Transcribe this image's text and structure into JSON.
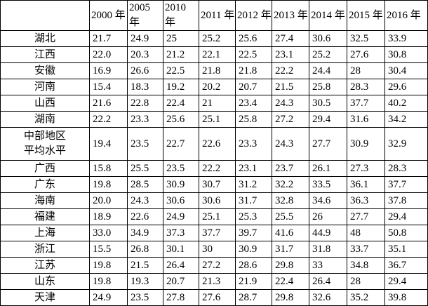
{
  "table": {
    "header": [
      "",
      "2000 年",
      "2005 年",
      "2010 年",
      "2011 年",
      "2012 年",
      "2013 年",
      "2014 年",
      "2015 年",
      "2016 年"
    ],
    "rows": [
      [
        "湖北",
        "21.7",
        "24.9",
        "25",
        "25.2",
        "25.6",
        "27.4",
        "30.6",
        "32.5",
        "33.9"
      ],
      [
        "江西",
        "22.0",
        "20.3",
        "21.2",
        "22.1",
        "22.5",
        "23.1",
        "25.2",
        "27.6",
        "30.8"
      ],
      [
        "安徽",
        "16.9",
        "26.6",
        "22.5",
        "21.8",
        "21.8",
        "22.2",
        "24.4",
        "28",
        "30.4"
      ],
      [
        "河南",
        "15.4",
        "18.3",
        "19.2",
        "20.2",
        "20.7",
        "21.5",
        "25.8",
        "28.3",
        "29.6"
      ],
      [
        "山西",
        "21.6",
        "22.8",
        "22.4",
        "21",
        "23.4",
        "24.3",
        "30.5",
        "37.7",
        "40.2"
      ],
      [
        "湖南",
        "22.2",
        "23.3",
        "25.6",
        "25.1",
        "25.8",
        "27.2",
        "29.4",
        "31.6",
        "34.2"
      ],
      [
        "中部地区\n平均水平",
        "19.4",
        "23.5",
        "22.7",
        "22.6",
        "23.3",
        "24.3",
        "27.7",
        "30.9",
        "32.9"
      ],
      [
        "广西",
        "15.8",
        "25.5",
        "23.5",
        "22.2",
        "23.1",
        "23.7",
        "26.1",
        "27.3",
        "28.3"
      ],
      [
        "广东",
        "19.8",
        "28.5",
        "30.9",
        "30.7",
        "31.2",
        "32.2",
        "33.5",
        "36.1",
        "37.7"
      ],
      [
        "海南",
        "20.0",
        "24.3",
        "30.6",
        "30.6",
        "31.7",
        "32.8",
        "34.6",
        "36.3",
        "37.8"
      ],
      [
        "福建",
        "18.9",
        "22.6",
        "24.9",
        "25.1",
        "25.3",
        "25.5",
        "26",
        "27.7",
        "29.4"
      ],
      [
        "上海",
        "33.0",
        "34.9",
        "37.3",
        "37.7",
        "39.7",
        "41.6",
        "44.9",
        "48",
        "50.8"
      ],
      [
        "浙江",
        "15.5",
        "26.8",
        "30.1",
        "30",
        "30.9",
        "31.7",
        "31.8",
        "33.7",
        "35.1"
      ],
      [
        "江苏",
        "19.8",
        "21.5",
        "26.4",
        "27.2",
        "28.6",
        "29.8",
        "33",
        "34.8",
        "36.7"
      ],
      [
        "山东",
        "19.8",
        "19.3",
        "20.7",
        "21.3",
        "21.9",
        "22.4",
        "26.4",
        "28",
        "29.4"
      ],
      [
        "天津",
        "24.9",
        "23.5",
        "27.8",
        "27.6",
        "28.7",
        "29.8",
        "32.6",
        "35.2",
        "39.8"
      ]
    ]
  }
}
